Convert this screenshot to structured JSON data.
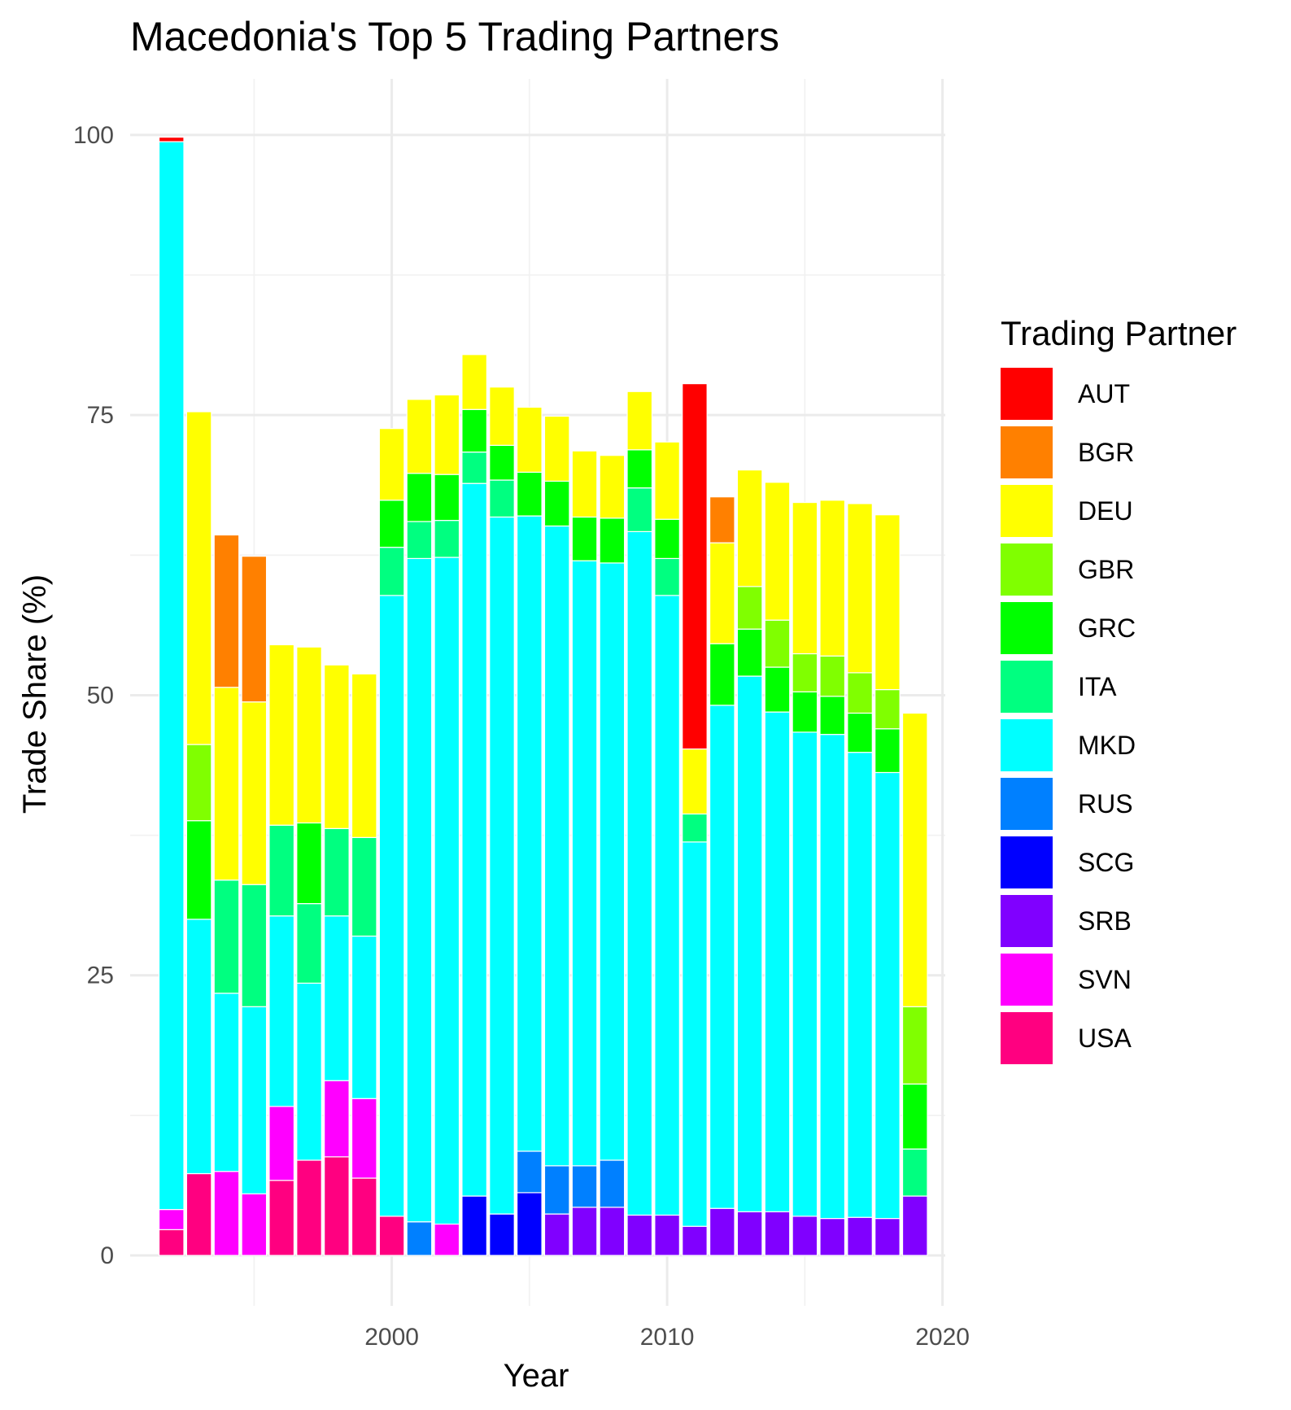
{
  "chart_data": {
    "type": "bar",
    "stacked": true,
    "title": "Macedonia's Top 5 Trading Partners",
    "xlabel": "Year",
    "ylabel": "Trade Share (%)",
    "xlim": [
      1990.5,
      2020.1
    ],
    "ylim": [
      -4.5,
      105
    ],
    "x_ticks": [
      2000,
      2010,
      2020
    ],
    "y_ticks": [
      0,
      25,
      50,
      75,
      100
    ],
    "grid": true,
    "legend": {
      "title": "Trading Partner",
      "position": "right"
    },
    "partners": [
      {
        "code": "AUT",
        "color": "#FF0000"
      },
      {
        "code": "BGR",
        "color": "#FF8000"
      },
      {
        "code": "DEU",
        "color": "#FFFF00"
      },
      {
        "code": "GBR",
        "color": "#80FF00"
      },
      {
        "code": "GRC",
        "color": "#00FF00"
      },
      {
        "code": "ITA",
        "color": "#00FF80"
      },
      {
        "code": "MKD",
        "color": "#00FFFF"
      },
      {
        "code": "RUS",
        "color": "#0080FF"
      },
      {
        "code": "SCG",
        "color": "#0000FF"
      },
      {
        "code": "SRB",
        "color": "#8000FF"
      },
      {
        "code": "SVN",
        "color": "#FF00FF"
      },
      {
        "code": "USA",
        "color": "#FF0080"
      }
    ],
    "bars": [
      {
        "year": 1992,
        "segments": [
          {
            "partner": "USA",
            "value": 2.3
          },
          {
            "partner": "SVN",
            "value": 1.8
          },
          {
            "partner": "MKD",
            "value": 95.3
          },
          {
            "partner": "AUT",
            "value": 0.4
          }
        ]
      },
      {
        "year": 1993,
        "segments": [
          {
            "partner": "USA",
            "value": 7.3
          },
          {
            "partner": "MKD",
            "value": 22.7
          },
          {
            "partner": "GRC",
            "value": 8.8
          },
          {
            "partner": "GBR",
            "value": 6.8
          },
          {
            "partner": "DEU",
            "value": 29.7
          }
        ]
      },
      {
        "year": 1994,
        "segments": [
          {
            "partner": "SVN",
            "value": 7.5
          },
          {
            "partner": "MKD",
            "value": 15.9
          },
          {
            "partner": "ITA",
            "value": 10.1
          },
          {
            "partner": "DEU",
            "value": 17.2
          },
          {
            "partner": "BGR",
            "value": 13.6
          }
        ]
      },
      {
        "year": 1995,
        "segments": [
          {
            "partner": "SVN",
            "value": 5.5
          },
          {
            "partner": "MKD",
            "value": 16.7
          },
          {
            "partner": "ITA",
            "value": 10.9
          },
          {
            "partner": "DEU",
            "value": 16.3
          },
          {
            "partner": "BGR",
            "value": 13.0
          }
        ]
      },
      {
        "year": 1996,
        "segments": [
          {
            "partner": "USA",
            "value": 6.7
          },
          {
            "partner": "SVN",
            "value": 6.6
          },
          {
            "partner": "MKD",
            "value": 17.0
          },
          {
            "partner": "ITA",
            "value": 8.1
          },
          {
            "partner": "DEU",
            "value": 16.1
          }
        ]
      },
      {
        "year": 1997,
        "segments": [
          {
            "partner": "USA",
            "value": 8.5
          },
          {
            "partner": "MKD",
            "value": 15.8
          },
          {
            "partner": "ITA",
            "value": 7.1
          },
          {
            "partner": "GRC",
            "value": 7.2
          },
          {
            "partner": "DEU",
            "value": 15.7
          }
        ]
      },
      {
        "year": 1998,
        "segments": [
          {
            "partner": "USA",
            "value": 8.8
          },
          {
            "partner": "SVN",
            "value": 6.8
          },
          {
            "partner": "MKD",
            "value": 14.7
          },
          {
            "partner": "ITA",
            "value": 7.8
          },
          {
            "partner": "DEU",
            "value": 14.6
          }
        ]
      },
      {
        "year": 1999,
        "segments": [
          {
            "partner": "USA",
            "value": 6.9
          },
          {
            "partner": "SVN",
            "value": 7.1
          },
          {
            "partner": "MKD",
            "value": 14.5
          },
          {
            "partner": "ITA",
            "value": 8.8
          },
          {
            "partner": "DEU",
            "value": 14.6
          }
        ]
      },
      {
        "year": 2000,
        "segments": [
          {
            "partner": "USA",
            "value": 3.5
          },
          {
            "partner": "MKD",
            "value": 55.4
          },
          {
            "partner": "ITA",
            "value": 4.3
          },
          {
            "partner": "GRC",
            "value": 4.2
          },
          {
            "partner": "DEU",
            "value": 6.4
          }
        ]
      },
      {
        "year": 2001,
        "segments": [
          {
            "partner": "RUS",
            "value": 3.0
          },
          {
            "partner": "MKD",
            "value": 59.2
          },
          {
            "partner": "ITA",
            "value": 3.3
          },
          {
            "partner": "GRC",
            "value": 4.3
          },
          {
            "partner": "DEU",
            "value": 6.6
          }
        ]
      },
      {
        "year": 2002,
        "segments": [
          {
            "partner": "SVN",
            "value": 2.8
          },
          {
            "partner": "MKD",
            "value": 59.5
          },
          {
            "partner": "ITA",
            "value": 3.3
          },
          {
            "partner": "GRC",
            "value": 4.1
          },
          {
            "partner": "DEU",
            "value": 7.1
          }
        ]
      },
      {
        "year": 2003,
        "segments": [
          {
            "partner": "SCG",
            "value": 5.3
          },
          {
            "partner": "MKD",
            "value": 63.6
          },
          {
            "partner": "ITA",
            "value": 2.8
          },
          {
            "partner": "GRC",
            "value": 3.8
          },
          {
            "partner": "DEU",
            "value": 4.9
          }
        ]
      },
      {
        "year": 2004,
        "segments": [
          {
            "partner": "SCG",
            "value": 3.7
          },
          {
            "partner": "MKD",
            "value": 62.2
          },
          {
            "partner": "ITA",
            "value": 3.3
          },
          {
            "partner": "GRC",
            "value": 3.1
          },
          {
            "partner": "DEU",
            "value": 5.2
          }
        ]
      },
      {
        "year": 2005,
        "segments": [
          {
            "partner": "SCG",
            "value": 5.6
          },
          {
            "partner": "RUS",
            "value": 3.7
          },
          {
            "partner": "MKD",
            "value": 56.7
          },
          {
            "partner": "GRC",
            "value": 3.9
          },
          {
            "partner": "DEU",
            "value": 5.8
          }
        ]
      },
      {
        "year": 2006,
        "segments": [
          {
            "partner": "SRB",
            "value": 3.7
          },
          {
            "partner": "RUS",
            "value": 4.3
          },
          {
            "partner": "MKD",
            "value": 57.1
          },
          {
            "partner": "GRC",
            "value": 4.0
          },
          {
            "partner": "DEU",
            "value": 5.8
          }
        ]
      },
      {
        "year": 2007,
        "segments": [
          {
            "partner": "SRB",
            "value": 4.3
          },
          {
            "partner": "RUS",
            "value": 3.7
          },
          {
            "partner": "MKD",
            "value": 54.0
          },
          {
            "partner": "GRC",
            "value": 3.9
          },
          {
            "partner": "DEU",
            "value": 5.9
          }
        ]
      },
      {
        "year": 2008,
        "segments": [
          {
            "partner": "SRB",
            "value": 4.3
          },
          {
            "partner": "RUS",
            "value": 4.2
          },
          {
            "partner": "MKD",
            "value": 53.3
          },
          {
            "partner": "GRC",
            "value": 4.0
          },
          {
            "partner": "DEU",
            "value": 5.6
          }
        ]
      },
      {
        "year": 2009,
        "segments": [
          {
            "partner": "SRB",
            "value": 3.6
          },
          {
            "partner": "MKD",
            "value": 61.0
          },
          {
            "partner": "ITA",
            "value": 3.9
          },
          {
            "partner": "GRC",
            "value": 3.4
          },
          {
            "partner": "DEU",
            "value": 5.2
          }
        ]
      },
      {
        "year": 2010,
        "segments": [
          {
            "partner": "SRB",
            "value": 3.6
          },
          {
            "partner": "MKD",
            "value": 55.3
          },
          {
            "partner": "ITA",
            "value": 3.3
          },
          {
            "partner": "GRC",
            "value": 3.5
          },
          {
            "partner": "DEU",
            "value": 6.9
          }
        ]
      },
      {
        "year": 2011,
        "segments": [
          {
            "partner": "SRB",
            "value": 2.6
          },
          {
            "partner": "MKD",
            "value": 34.3
          },
          {
            "partner": "ITA",
            "value": 2.5
          },
          {
            "partner": "DEU",
            "value": 5.8
          },
          {
            "partner": "AUT",
            "value": 32.6
          }
        ]
      },
      {
        "year": 2012,
        "segments": [
          {
            "partner": "SRB",
            "value": 4.2
          },
          {
            "partner": "MKD",
            "value": 44.9
          },
          {
            "partner": "GRC",
            "value": 5.5
          },
          {
            "partner": "DEU",
            "value": 9.0
          },
          {
            "partner": "BGR",
            "value": 4.1
          }
        ]
      },
      {
        "year": 2013,
        "segments": [
          {
            "partner": "SRB",
            "value": 3.9
          },
          {
            "partner": "MKD",
            "value": 47.8
          },
          {
            "partner": "GRC",
            "value": 4.2
          },
          {
            "partner": "GBR",
            "value": 3.8
          },
          {
            "partner": "DEU",
            "value": 10.4
          }
        ]
      },
      {
        "year": 2014,
        "segments": [
          {
            "partner": "SRB",
            "value": 3.9
          },
          {
            "partner": "MKD",
            "value": 44.6
          },
          {
            "partner": "GRC",
            "value": 4.0
          },
          {
            "partner": "GBR",
            "value": 4.2
          },
          {
            "partner": "DEU",
            "value": 12.3
          }
        ]
      },
      {
        "year": 2015,
        "segments": [
          {
            "partner": "SRB",
            "value": 3.5
          },
          {
            "partner": "MKD",
            "value": 43.2
          },
          {
            "partner": "GRC",
            "value": 3.6
          },
          {
            "partner": "GBR",
            "value": 3.4
          },
          {
            "partner": "DEU",
            "value": 13.5
          }
        ]
      },
      {
        "year": 2016,
        "segments": [
          {
            "partner": "SRB",
            "value": 3.3
          },
          {
            "partner": "MKD",
            "value": 43.2
          },
          {
            "partner": "GRC",
            "value": 3.4
          },
          {
            "partner": "GBR",
            "value": 3.6
          },
          {
            "partner": "DEU",
            "value": 13.9
          }
        ]
      },
      {
        "year": 2017,
        "segments": [
          {
            "partner": "SRB",
            "value": 3.4
          },
          {
            "partner": "MKD",
            "value": 41.5
          },
          {
            "partner": "GRC",
            "value": 3.5
          },
          {
            "partner": "GBR",
            "value": 3.6
          },
          {
            "partner": "DEU",
            "value": 15.1
          }
        ]
      },
      {
        "year": 2018,
        "segments": [
          {
            "partner": "SRB",
            "value": 3.3
          },
          {
            "partner": "MKD",
            "value": 39.8
          },
          {
            "partner": "GRC",
            "value": 3.9
          },
          {
            "partner": "GBR",
            "value": 3.5
          },
          {
            "partner": "DEU",
            "value": 15.6
          }
        ]
      },
      {
        "year": 2019,
        "segments": [
          {
            "partner": "SRB",
            "value": 5.3
          },
          {
            "partner": "ITA",
            "value": 4.2
          },
          {
            "partner": "GRC",
            "value": 5.8
          },
          {
            "partner": "GBR",
            "value": 6.9
          },
          {
            "partner": "DEU",
            "value": 26.2
          }
        ]
      }
    ]
  }
}
